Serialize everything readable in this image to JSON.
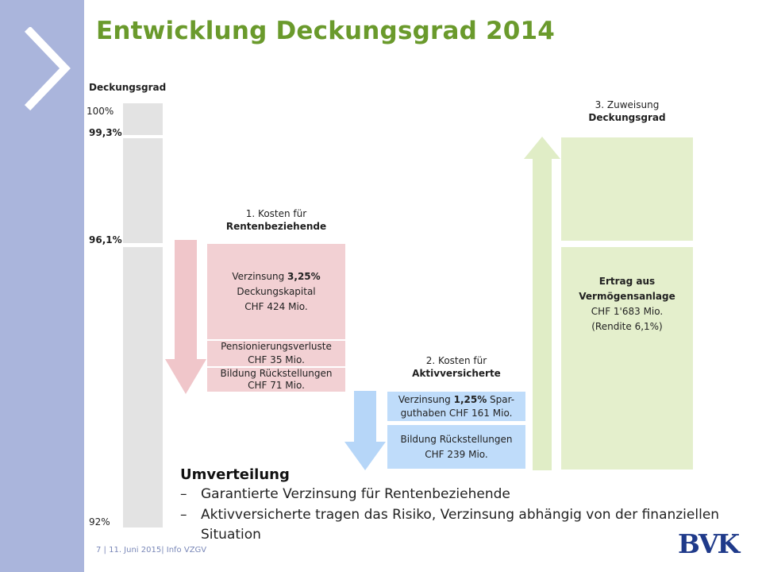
{
  "title": "Entwicklung Deckungsgrad 2014",
  "scale": {
    "header": "Deckungsgrad",
    "levels": [
      "100%",
      "99,3%",
      "96,1%",
      "92%"
    ],
    "values": [
      100,
      99.3,
      96.1,
      92
    ]
  },
  "section1": {
    "line1": "1. Kosten für",
    "line2": "Rentenbeziehende",
    "boxes": [
      {
        "pre": "Verzinsung ",
        "bold": "3,25%",
        "rest1": "Deckungskapital",
        "rest2": "CHF 424 Mio."
      },
      {
        "line1": "Pensionierungsverluste",
        "line2": "CHF 35 Mio."
      },
      {
        "line1": "Bildung Rückstellungen",
        "line2": "CHF 71 Mio."
      }
    ]
  },
  "section2": {
    "line1": "2. Kosten für",
    "line2": "Aktivversicherte",
    "boxes": [
      {
        "pre": "Verzinsung ",
        "bold": "1,25%",
        "post": " Spar-",
        "line2": "guthaben CHF 161 Mio."
      },
      {
        "line1": "Bildung Rückstellungen",
        "line2": "CHF 239 Mio."
      }
    ]
  },
  "section3": {
    "line1": "3. Zuweisung",
    "line2": "Deckungsgrad",
    "box": {
      "line1": "Ertrag aus",
      "line2": "Vermögensanlage",
      "line3": "CHF 1'683 Mio.",
      "line4": "(Rendite 6,1%)"
    }
  },
  "note": {
    "title": "Umverteilung",
    "dash": "–",
    "bullets": [
      "Garantierte Verzinsung für Rentenbeziehende",
      "Aktivversicherte tragen das Risiko, Verzinsung abhängig von der finanziellen",
      "Situation"
    ]
  },
  "footer": "7   |  11. Juni 2015|  Info VZGV",
  "logo_text": "BVK",
  "colors": {
    "sidebar": "#aab5dc",
    "title": "#6a9a2c",
    "scale_bar": "#e3e3e3",
    "pink": "#f2d0d3",
    "pink_arrow": "#f0c6ca",
    "blue": "#bfdcfa",
    "blue_arrow": "#b6d6f8",
    "green": "#e4efcc",
    "logo": "#1f3a8a"
  }
}
